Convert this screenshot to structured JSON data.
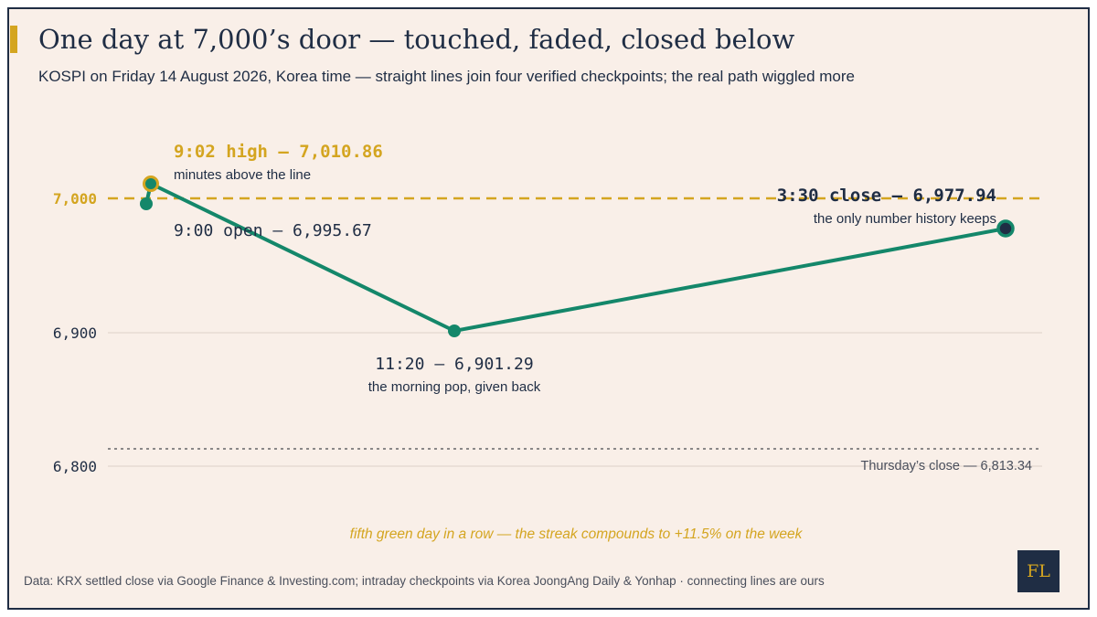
{
  "title": "One day at 7,000’s door — touched, faded, closed below",
  "subtitle": "KOSPI on Friday 14 August 2026, Korea time — straight lines join four verified checkpoints; the real path wiggled more",
  "source": "Data: KRX settled close via Google Finance & Investing.com; intraday checkpoints via Korea JoongAng Daily & Yonhap · connecting lines are ours",
  "logo": "FL",
  "colors": {
    "line": "#14876a",
    "accent": "#d4a520",
    "dark": "#1f2d44",
    "background": "#f9efe8"
  },
  "chart_data": {
    "type": "line",
    "y_ticks": [
      "7,000",
      "6,900",
      "6,800"
    ],
    "reference_lines": [
      {
        "value": 7000,
        "style": "dashed",
        "color": "#d4a520"
      },
      {
        "value": 6813.34,
        "style": "dotted",
        "color": "#7a7a7a",
        "label": "Thursday’s close — 6,813.34"
      }
    ],
    "ylim": [
      6800,
      7000
    ],
    "grid": true,
    "points": [
      {
        "time": "9:00",
        "value": 6995.67,
        "label": "9:00 open — 6,995.67",
        "note": ""
      },
      {
        "time": "9:02",
        "value": 7010.86,
        "label": "9:02 high — 7,010.86",
        "note": "minutes above the line"
      },
      {
        "time": "11:20",
        "value": 6901.29,
        "label": "11:20 — 6,901.29",
        "note": "the morning pop, given back"
      },
      {
        "time": "3:30",
        "value": 6977.94,
        "label": "3:30 close — 6,977.94",
        "note": "the only number history keeps"
      }
    ],
    "annotation": "fifth green day in a row — the streak compounds to +11.5% on the week"
  }
}
